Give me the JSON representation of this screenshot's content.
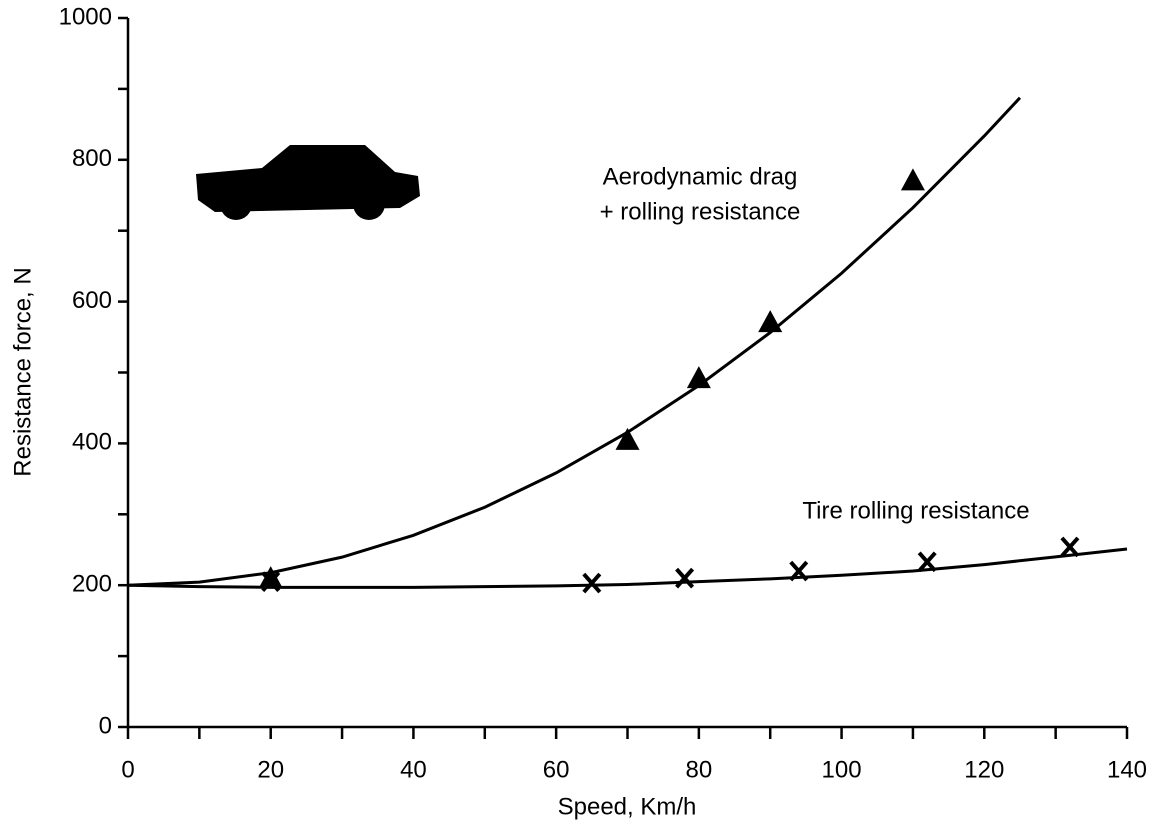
{
  "chart_data": {
    "type": "line",
    "x_label": "Speed, Km/h",
    "y_label": "Resistance force, N",
    "xlim": [
      0,
      140
    ],
    "xticks": [
      0,
      20,
      40,
      60,
      80,
      100,
      120,
      140
    ],
    "xminorticks": [
      10,
      30,
      50,
      70,
      90,
      110,
      130
    ],
    "ylim": [
      0,
      1000
    ],
    "yticks": [
      0,
      200,
      400,
      600,
      800,
      1000
    ],
    "yminorticks": [
      100,
      300,
      500,
      700,
      900
    ],
    "grid": false,
    "color": "#000000",
    "series": [
      {
        "label_lines": [
          "Aerodynamic drag",
          "+ rolling resistance"
        ],
        "marker": "triangle",
        "curve": {
          "x": [
            0,
            10,
            20,
            30,
            40,
            50,
            60,
            70,
            80,
            90,
            100,
            110,
            120,
            125
          ],
          "values": [
            200,
            204.4,
            217.6,
            239.6,
            270.4,
            310,
            358.4,
            415.6,
            481.6,
            556.4,
            640,
            732.4,
            833.6,
            887.5
          ]
        },
        "points": {
          "x": [
            20,
            70,
            80,
            90,
            110
          ],
          "values": [
            210,
            405,
            492,
            571,
            771
          ]
        }
      },
      {
        "label_lines": [
          "Tire rolling resistance"
        ],
        "marker": "cross",
        "curve": {
          "x": [
            0,
            10,
            20,
            30,
            40,
            50,
            60,
            70,
            80,
            90,
            100,
            110,
            120,
            130,
            140
          ],
          "values": [
            200,
            198,
            197,
            197,
            197,
            198,
            199,
            201,
            205,
            209,
            214,
            220,
            229,
            240,
            251
          ]
        },
        "points": {
          "x": [
            20,
            65,
            78,
            94,
            112,
            132
          ],
          "values": [
            205,
            203,
            210,
            220,
            233,
            254
          ]
        }
      }
    ]
  }
}
